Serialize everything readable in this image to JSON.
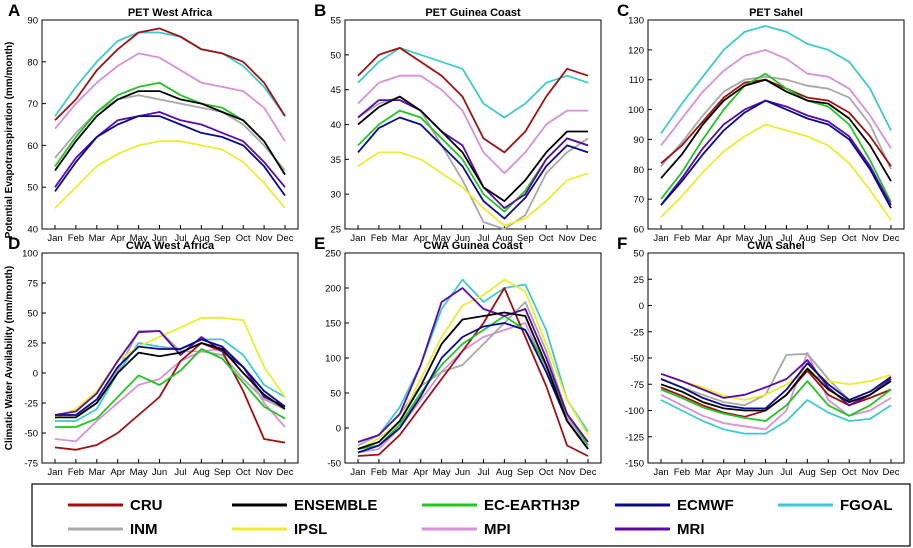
{
  "months": [
    "Jan",
    "Feb",
    "Mar",
    "Apr",
    "May",
    "Jun",
    "Jul",
    "Aug",
    "Sep",
    "Oct",
    "Nov",
    "Dec"
  ],
  "y_labels": {
    "top": "Potential Evapotranspiration (mm/month)",
    "bottom": "Climatic Water Availability (mm/month)"
  },
  "legend": [
    {
      "name": "CRU",
      "color": "#a01010"
    },
    {
      "name": "ENSEMBLE",
      "color": "#000000"
    },
    {
      "name": "EC-EARTH3P",
      "color": "#22c422"
    },
    {
      "name": "ECMWF",
      "color": "#0a0a8c"
    },
    {
      "name": "FGOAL",
      "color": "#3ccad0"
    },
    {
      "name": "INM",
      "color": "#a8a8a8"
    },
    {
      "name": "IPSL",
      "color": "#ecec30"
    },
    {
      "name": "MPI",
      "color": "#d890d8"
    },
    {
      "name": "MRI",
      "color": "#5a0aa8"
    }
  ],
  "chart_data": [
    {
      "panel": "A",
      "type": "line",
      "title": "PET West Africa",
      "xlabel": "",
      "ylabel": "Potential Evapotranspiration (mm/month)",
      "ylim": [
        40,
        90
      ],
      "yticks": [
        40,
        50,
        60,
        70,
        80,
        90
      ],
      "categories": [
        "Jan",
        "Feb",
        "Mar",
        "Apr",
        "May",
        "Jun",
        "Jul",
        "Aug",
        "Sep",
        "Oct",
        "Nov",
        "Dec"
      ],
      "series": [
        {
          "name": "CRU",
          "values": [
            66,
            71,
            78,
            83,
            87,
            88,
            86,
            83,
            82,
            80,
            75,
            67
          ]
        },
        {
          "name": "ENSEMBLE",
          "values": [
            54,
            61,
            67,
            71,
            73,
            73,
            71,
            70,
            68,
            66,
            61,
            53
          ]
        },
        {
          "name": "EC-EARTH3P",
          "values": [
            55,
            62,
            68,
            72,
            74,
            75,
            72,
            70,
            69,
            66,
            61,
            53
          ]
        },
        {
          "name": "ECMWF",
          "values": [
            49,
            56,
            62,
            65,
            67,
            67,
            65,
            63,
            62,
            60,
            55,
            48
          ]
        },
        {
          "name": "FGOAL",
          "values": [
            67,
            74,
            80,
            85,
            87,
            87,
            86,
            83,
            82,
            79,
            74,
            67
          ]
        },
        {
          "name": "INM",
          "values": [
            57,
            63,
            68,
            71,
            72,
            71,
            70,
            69,
            68,
            65,
            60,
            54
          ]
        },
        {
          "name": "IPSL",
          "values": [
            45,
            50,
            55,
            58,
            60,
            61,
            61,
            60,
            59,
            56,
            51,
            45
          ]
        },
        {
          "name": "MPI",
          "values": [
            64,
            70,
            75,
            79,
            82,
            81,
            78,
            75,
            74,
            73,
            69,
            61
          ]
        },
        {
          "name": "MRI",
          "values": [
            50,
            57,
            62,
            66,
            67,
            68,
            66,
            65,
            63,
            61,
            56,
            50
          ]
        }
      ]
    },
    {
      "panel": "B",
      "type": "line",
      "title": "PET Guinea Coast",
      "xlabel": "",
      "ylabel": "",
      "ylim": [
        25,
        55
      ],
      "yticks": [
        25,
        30,
        35,
        40,
        45,
        50,
        55
      ],
      "categories": [
        "Jan",
        "Feb",
        "Mar",
        "Apr",
        "May",
        "Jun",
        "Jul",
        "Aug",
        "Sep",
        "Oct",
        "Nov",
        "Dec"
      ],
      "series": [
        {
          "name": "CRU",
          "values": [
            47,
            50,
            51,
            49,
            47,
            44,
            38,
            36,
            39,
            44,
            48,
            47
          ]
        },
        {
          "name": "ENSEMBLE",
          "values": [
            40,
            42.5,
            44,
            42,
            39,
            36,
            31,
            29,
            32,
            36,
            39,
            39
          ]
        },
        {
          "name": "EC-EARTH3P",
          "values": [
            37,
            40,
            42,
            41,
            38,
            35,
            30,
            27.5,
            30.5,
            35,
            38,
            37
          ]
        },
        {
          "name": "ECMWF",
          "values": [
            36,
            39.5,
            41,
            40,
            37,
            34,
            29,
            26.5,
            29.5,
            34,
            37,
            36
          ]
        },
        {
          "name": "FGOAL",
          "values": [
            46,
            49,
            51,
            50,
            49,
            48,
            43,
            41,
            43,
            46,
            47,
            46
          ]
        },
        {
          "name": "INM",
          "values": [
            41,
            43,
            44,
            42,
            37,
            32,
            26,
            25,
            27,
            33,
            36,
            38
          ]
        },
        {
          "name": "IPSL",
          "values": [
            34,
            36,
            36,
            35,
            33,
            31,
            28,
            25.5,
            26.5,
            29,
            32,
            33
          ]
        },
        {
          "name": "MPI",
          "values": [
            43,
            46,
            47,
            47,
            45,
            42,
            36,
            33,
            36,
            40,
            42,
            42
          ]
        },
        {
          "name": "MRI",
          "values": [
            41,
            43.5,
            43.5,
            42,
            39,
            37,
            31,
            28,
            30,
            35,
            38,
            37
          ]
        }
      ]
    },
    {
      "panel": "C",
      "type": "line",
      "title": "PET Sahel",
      "xlabel": "",
      "ylabel": "",
      "ylim": [
        60,
        130
      ],
      "yticks": [
        60,
        70,
        80,
        90,
        100,
        110,
        120,
        130
      ],
      "categories": [
        "Jan",
        "Feb",
        "Mar",
        "Apr",
        "May",
        "Jun",
        "Jul",
        "Aug",
        "Sep",
        "Oct",
        "Nov",
        "Dec"
      ],
      "series": [
        {
          "name": "CRU",
          "values": [
            82,
            88,
            96,
            104,
            109,
            110,
            107,
            104,
            103,
            99,
            91,
            81
          ]
        },
        {
          "name": "ENSEMBLE",
          "values": [
            77,
            85,
            95,
            103,
            108,
            110,
            106,
            103,
            102,
            97,
            88,
            76
          ]
        },
        {
          "name": "EC-EARTH3P",
          "values": [
            70,
            79,
            90,
            100,
            108,
            112,
            107,
            103,
            101,
            95,
            83,
            69
          ]
        },
        {
          "name": "ECMWF",
          "values": [
            68,
            76,
            85,
            93,
            99,
            103,
            100,
            97,
            95,
            90,
            80,
            67
          ]
        },
        {
          "name": "FGOAL",
          "values": [
            92,
            102,
            111,
            120,
            126,
            128,
            126,
            122,
            120,
            116,
            107,
            93
          ]
        },
        {
          "name": "INM",
          "values": [
            81,
            89,
            98,
            106,
            110,
            111,
            110,
            108,
            107,
            104,
            95,
            80
          ]
        },
        {
          "name": "IPSL",
          "values": [
            64,
            71,
            79,
            86,
            91,
            95,
            93,
            91,
            88,
            82,
            73,
            63
          ]
        },
        {
          "name": "MPI",
          "values": [
            88,
            97,
            106,
            113,
            118,
            120,
            117,
            112,
            111,
            107,
            98,
            87
          ]
        },
        {
          "name": "MRI",
          "values": [
            68,
            77,
            87,
            95,
            100,
            103,
            101,
            98,
            96,
            91,
            81,
            68
          ]
        }
      ]
    },
    {
      "panel": "D",
      "type": "line",
      "title": "CWA West Africa",
      "xlabel": "",
      "ylabel": "Climatic Water Availability (mm/month)",
      "ylim": [
        -75,
        100
      ],
      "yticks": [
        -75,
        -50,
        -25,
        0,
        25,
        50,
        75,
        100
      ],
      "categories": [
        "Jan",
        "Feb",
        "Mar",
        "Apr",
        "May",
        "Jun",
        "Jul",
        "Aug",
        "Sep",
        "Oct",
        "Nov",
        "Dec"
      ],
      "series": [
        {
          "name": "CRU",
          "values": [
            -62,
            -64,
            -60,
            -50,
            -35,
            -20,
            10,
            25,
            18,
            -15,
            -55,
            -58
          ]
        },
        {
          "name": "ENSEMBLE",
          "values": [
            -37,
            -37,
            -25,
            0,
            17,
            14,
            17,
            25,
            20,
            0,
            -18,
            -30
          ]
        },
        {
          "name": "EC-EARTH3P",
          "values": [
            -45,
            -45,
            -38,
            -20,
            -2,
            -10,
            2,
            20,
            12,
            -8,
            -28,
            -38
          ]
        },
        {
          "name": "ECMWF",
          "values": [
            -35,
            -35,
            -22,
            5,
            22,
            20,
            20,
            28,
            22,
            5,
            -15,
            -28
          ]
        },
        {
          "name": "FGOAL",
          "values": [
            -40,
            -40,
            -30,
            0,
            25,
            22,
            20,
            28,
            28,
            15,
            -10,
            -20
          ]
        },
        {
          "name": "INM",
          "values": [
            -35,
            -35,
            -25,
            2,
            35,
            35,
            18,
            18,
            15,
            -5,
            -22,
            -30
          ]
        },
        {
          "name": "IPSL",
          "values": [
            -38,
            -30,
            -15,
            10,
            22,
            30,
            38,
            46,
            46,
            44,
            5,
            -20
          ]
        },
        {
          "name": "MPI",
          "values": [
            -55,
            -57,
            -40,
            -25,
            -10,
            -5,
            10,
            18,
            20,
            5,
            -25,
            -45
          ]
        },
        {
          "name": "MRI",
          "values": [
            -35,
            -32,
            -17,
            10,
            34,
            35,
            15,
            30,
            18,
            5,
            -20,
            -28
          ]
        }
      ]
    },
    {
      "panel": "E",
      "type": "line",
      "title": "CWA Guinea Coast",
      "xlabel": "",
      "ylabel": "",
      "ylim": [
        -50,
        250
      ],
      "yticks": [
        -50,
        0,
        50,
        100,
        150,
        200,
        250
      ],
      "categories": [
        "Jan",
        "Feb",
        "Mar",
        "Apr",
        "May",
        "Jun",
        "Jul",
        "Aug",
        "Sep",
        "Oct",
        "Nov",
        "Dec"
      ],
      "series": [
        {
          "name": "CRU",
          "values": [
            -40,
            -38,
            -10,
            30,
            70,
            110,
            150,
            200,
            130,
            60,
            -25,
            -40
          ]
        },
        {
          "name": "ENSEMBLE",
          "values": [
            -30,
            -20,
            10,
            60,
            120,
            155,
            160,
            165,
            160,
            90,
            10,
            -30
          ]
        },
        {
          "name": "EC-EARTH3P",
          "values": [
            -30,
            -25,
            5,
            50,
            90,
            120,
            140,
            160,
            140,
            90,
            20,
            -25
          ]
        },
        {
          "name": "ECMWF",
          "values": [
            -35,
            -25,
            0,
            45,
            100,
            130,
            145,
            150,
            140,
            80,
            10,
            -30
          ]
        },
        {
          "name": "FGOAL",
          "values": [
            -25,
            -10,
            30,
            90,
            170,
            212,
            180,
            200,
            205,
            140,
            40,
            -5
          ]
        },
        {
          "name": "INM",
          "values": [
            -25,
            -10,
            20,
            60,
            80,
            90,
            120,
            150,
            180,
            110,
            20,
            -20
          ]
        },
        {
          "name": "IPSL",
          "values": [
            -30,
            -15,
            10,
            70,
            130,
            175,
            190,
            212,
            195,
            120,
            40,
            -10
          ]
        },
        {
          "name": "MPI",
          "values": [
            -35,
            -30,
            0,
            40,
            80,
            110,
            130,
            140,
            150,
            85,
            15,
            -30
          ]
        },
        {
          "name": "MRI",
          "values": [
            -20,
            -10,
            20,
            90,
            180,
            200,
            170,
            160,
            170,
            100,
            20,
            -20
          ]
        }
      ]
    },
    {
      "panel": "F",
      "type": "line",
      "title": "CWA Sahel",
      "xlabel": "",
      "ylabel": "",
      "ylim": [
        -150,
        50
      ],
      "yticks": [
        -150,
        -125,
        -100,
        -75,
        -50,
        -25,
        0,
        25,
        50
      ],
      "categories": [
        "Jan",
        "Feb",
        "Mar",
        "Apr",
        "May",
        "Jun",
        "Jul",
        "Aug",
        "Sep",
        "Oct",
        "Nov",
        "Dec"
      ],
      "series": [
        {
          "name": "CRU",
          "values": [
            -78,
            -86,
            -95,
            -102,
            -106,
            -100,
            -85,
            -62,
            -85,
            -95,
            -88,
            -80
          ]
        },
        {
          "name": "ENSEMBLE",
          "values": [
            -75,
            -82,
            -92,
            -98,
            -100,
            -100,
            -85,
            -60,
            -80,
            -92,
            -85,
            -72
          ]
        },
        {
          "name": "EC-EARTH3P",
          "values": [
            -80,
            -88,
            -97,
            -103,
            -107,
            -110,
            -95,
            -72,
            -95,
            -105,
            -95,
            -80
          ]
        },
        {
          "name": "ECMWF",
          "values": [
            -70,
            -78,
            -88,
            -95,
            -98,
            -98,
            -80,
            -55,
            -75,
            -90,
            -82,
            -68
          ]
        },
        {
          "name": "FGOAL",
          "values": [
            -90,
            -100,
            -110,
            -118,
            -122,
            -122,
            -110,
            -90,
            -102,
            -110,
            -108,
            -95
          ]
        },
        {
          "name": "INM",
          "values": [
            -70,
            -78,
            -85,
            -92,
            -95,
            -85,
            -47,
            -46,
            -70,
            -90,
            -82,
            -70
          ]
        },
        {
          "name": "IPSL",
          "values": [
            -65,
            -72,
            -78,
            -86,
            -90,
            -85,
            -75,
            -60,
            -72,
            -75,
            -72,
            -66
          ]
        },
        {
          "name": "MPI",
          "values": [
            -85,
            -95,
            -105,
            -112,
            -115,
            -118,
            -100,
            -45,
            -90,
            -105,
            -100,
            -88
          ]
        },
        {
          "name": "MRI",
          "values": [
            -65,
            -72,
            -80,
            -88,
            -85,
            -78,
            -70,
            -52,
            -78,
            -95,
            -85,
            -70
          ]
        }
      ]
    }
  ]
}
